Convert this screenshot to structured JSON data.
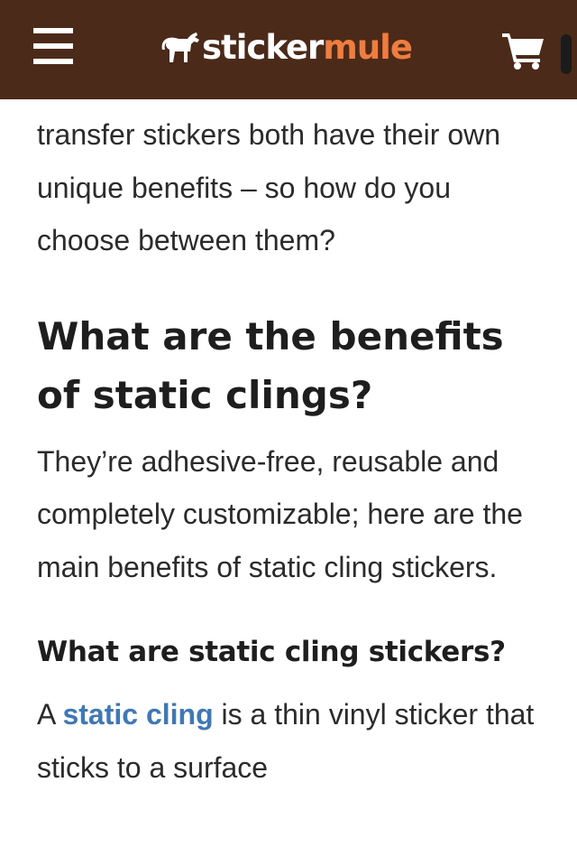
{
  "header": {
    "logo_part1": "sticker",
    "logo_part2": "mule",
    "colors": {
      "background": "#4b2a1a",
      "logo_accent": "#f07d40"
    },
    "icons": [
      "menu-icon",
      "horse-icon",
      "cart-icon"
    ]
  },
  "article": {
    "intro_paragraph": "transfer stickers both have their own unique benefits – so how do you choose between them?",
    "heading_benefits": "What are the benefits of static clings?",
    "benefits_paragraph": "They’re adhesive-free, reusable and completely customizable; here are the main benefits of static cling stickers.",
    "subheading_what": "What are static cling stickers?",
    "definition": {
      "prefix": "A ",
      "link_text": "static cling",
      "suffix": " is a thin vinyl sticker that sticks to a surface"
    },
    "link_color": "#3f78b5"
  }
}
